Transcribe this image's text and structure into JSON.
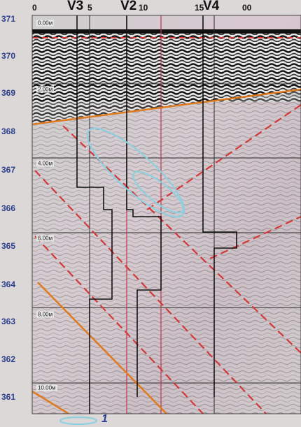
{
  "y_axis": {
    "ticks": [
      "371",
      "370",
      "369",
      "368",
      "367",
      "366",
      "365",
      "364",
      "363",
      "362",
      "361"
    ],
    "range": [
      361,
      371
    ]
  },
  "x_axis": {
    "ticks": [
      "0",
      "5",
      "10",
      "15",
      "00"
    ]
  },
  "wells": [
    "V3",
    "V2",
    "V4"
  ],
  "depth_tags": [
    "0.00м",
    "2.00м",
    "4.00м",
    "6.00м",
    "8.00м",
    "10.00м"
  ],
  "legend": {
    "symbol": "ellipse-outline",
    "number": "1"
  },
  "colors": {
    "axis_text": "#2a3f8f",
    "ellipse": "#8ecfe0",
    "dashed_lines": "#d23a3a",
    "orange_lines": "#e07a1e",
    "well_lines": "#111111",
    "grid": "#222222"
  }
}
